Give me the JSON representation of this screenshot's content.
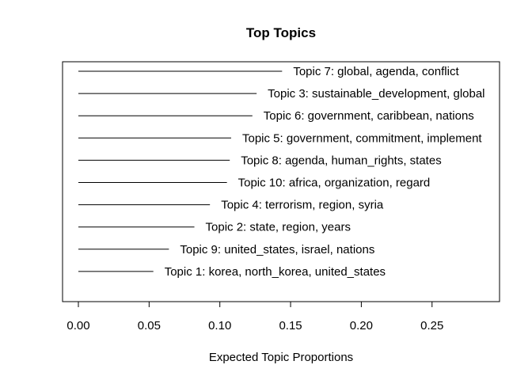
{
  "chart_data": {
    "type": "bar",
    "orientation": "horizontal",
    "title": "Top Topics",
    "xlabel": "Expected Topic Proportions",
    "ylabel": "",
    "xlim": [
      0,
      0.3
    ],
    "xticks": [
      0.0,
      0.05,
      0.1,
      0.15,
      0.2,
      0.25
    ],
    "xtick_labels": [
      "0.00",
      "0.05",
      "0.10",
      "0.15",
      "0.20",
      "0.25"
    ],
    "grid": false,
    "legend": "none",
    "bar_color": "#000000",
    "categories": [
      "Topic 7: global, agenda, conflict",
      "Topic 3: sustainable_development, global",
      "Topic 6: government, caribbean, nations",
      "Topic 5: government, commitment, implement",
      "Topic 8: agenda, human_rights, states",
      "Topic 10: africa, organization, regard",
      "Topic 4: terrorism, region, syria",
      "Topic 2: state, region, years",
      "Topic 9: united_states, israel, nations",
      "Topic 1: korea, north_korea, united_states"
    ],
    "values": [
      0.144,
      0.126,
      0.123,
      0.108,
      0.107,
      0.105,
      0.093,
      0.082,
      0.064,
      0.053
    ]
  }
}
